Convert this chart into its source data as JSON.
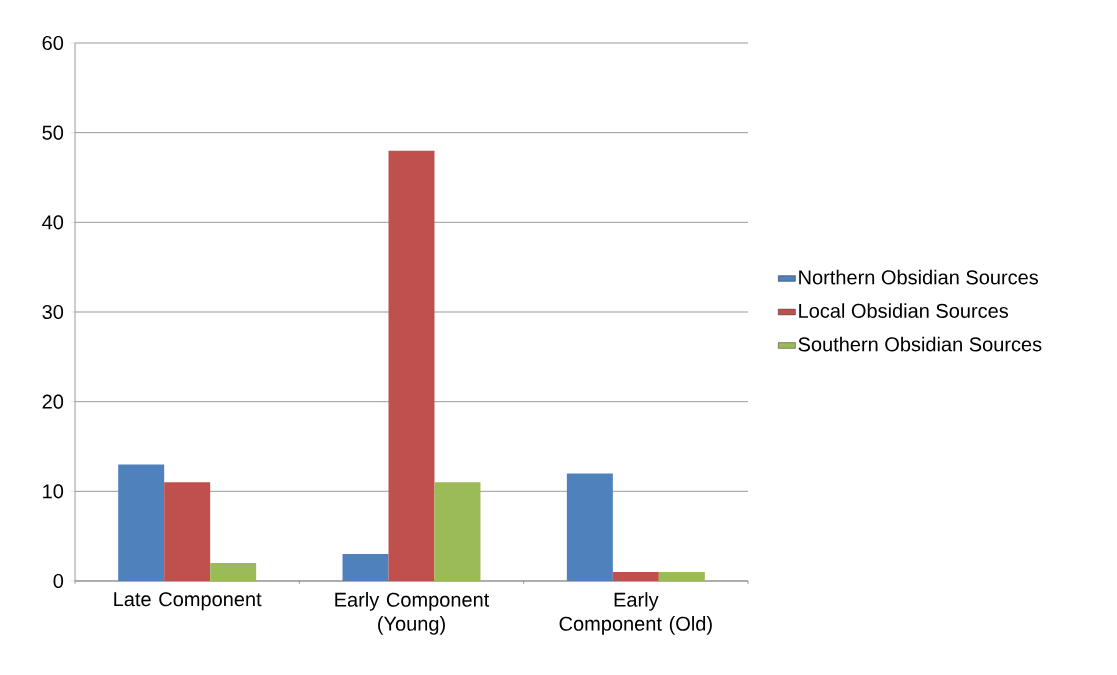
{
  "chart_data": {
    "type": "bar",
    "categories": [
      "Late Component",
      "Early Component (Young)",
      "Early Component (Old)"
    ],
    "series": [
      {
        "name": "Northern Obsidian Sources",
        "color": "#4f81bd",
        "values": [
          13,
          3,
          12
        ]
      },
      {
        "name": "Local Obsidian Sources",
        "color": "#c0504d",
        "values": [
          11,
          48,
          1
        ]
      },
      {
        "name": "Southern Obsidian Sources",
        "color": "#9bbb59",
        "values": [
          2,
          11,
          1
        ]
      }
    ],
    "ylim": [
      0,
      60
    ],
    "yticks": [
      0,
      10,
      20,
      30,
      40,
      50,
      60
    ],
    "grid": "y",
    "legend": "right"
  }
}
